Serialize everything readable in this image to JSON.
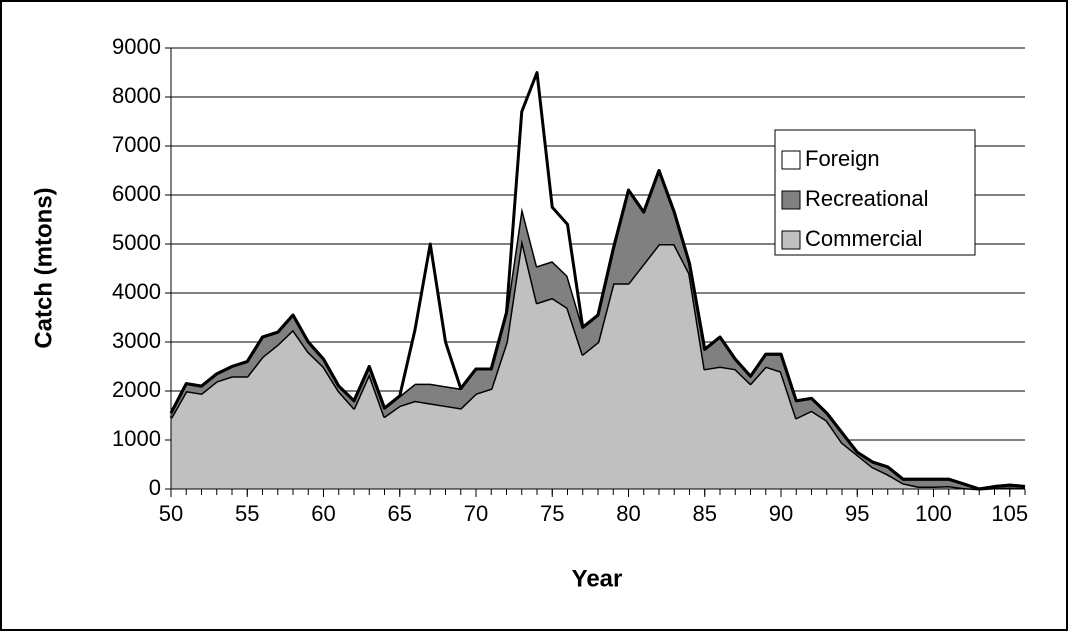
{
  "chart_data": {
    "type": "stacked_area",
    "x": [
      50,
      51,
      52,
      53,
      54,
      55,
      56,
      57,
      58,
      59,
      60,
      61,
      62,
      63,
      64,
      65,
      66,
      67,
      68,
      69,
      70,
      71,
      72,
      73,
      74,
      75,
      76,
      77,
      78,
      79,
      80,
      81,
      82,
      83,
      84,
      85,
      86,
      87,
      88,
      89,
      90,
      91,
      92,
      93,
      94,
      95,
      96,
      97,
      98,
      99,
      100,
      101,
      102,
      103,
      104,
      105,
      106
    ],
    "series": [
      {
        "name": "Commercial",
        "color": "#c0c0c0",
        "values": [
          1450,
          2000,
          1950,
          2200,
          2300,
          2300,
          2700,
          2950,
          3250,
          2800,
          2500,
          2000,
          1650,
          2350,
          1480,
          1700,
          1800,
          1750,
          1700,
          1650,
          1950,
          2050,
          3000,
          5100,
          3800,
          3900,
          3700,
          2750,
          3000,
          4200,
          4200,
          4600,
          5000,
          5000,
          4400,
          2450,
          2500,
          2450,
          2150,
          2500,
          2400,
          1450,
          1600,
          1400,
          950,
          700,
          450,
          300,
          120,
          50,
          50,
          60,
          20,
          0,
          20,
          30,
          20
        ]
      },
      {
        "name": "Recreational",
        "color": "#808080",
        "values": [
          100,
          150,
          150,
          150,
          200,
          300,
          400,
          250,
          300,
          200,
          150,
          100,
          150,
          150,
          170,
          200,
          350,
          400,
          400,
          400,
          500,
          400,
          600,
          650,
          750,
          750,
          650,
          550,
          550,
          700,
          1900,
          1050,
          1500,
          650,
          200,
          400,
          600,
          200,
          150,
          250,
          350,
          350,
          250,
          150,
          200,
          50,
          100,
          150,
          80,
          150,
          150,
          140,
          80,
          0,
          30,
          50,
          30
        ]
      },
      {
        "name": "Foreign",
        "color": "#ffffff",
        "values": [
          0,
          0,
          0,
          0,
          0,
          0,
          0,
          0,
          0,
          0,
          0,
          0,
          0,
          0,
          0,
          0,
          1100,
          2850,
          900,
          0,
          0,
          0,
          0,
          1950,
          3950,
          1100,
          1050,
          0,
          0,
          0,
          0,
          0,
          0,
          0,
          0,
          0,
          0,
          0,
          0,
          0,
          0,
          0,
          0,
          0,
          0,
          0,
          0,
          0,
          0,
          0,
          0,
          0,
          0,
          0,
          0,
          0,
          0
        ]
      }
    ],
    "x_label": "Year",
    "y_label": "Catch (mtons)",
    "xlim": [
      50,
      106
    ],
    "xticks": [
      50,
      55,
      60,
      65,
      70,
      75,
      80,
      85,
      90,
      95,
      100,
      105
    ],
    "ylim": [
      0,
      9000
    ],
    "yticks": [
      0,
      1000,
      2000,
      3000,
      4000,
      5000,
      6000,
      7000,
      8000,
      9000
    ],
    "grid": true,
    "legend": "upper right"
  }
}
